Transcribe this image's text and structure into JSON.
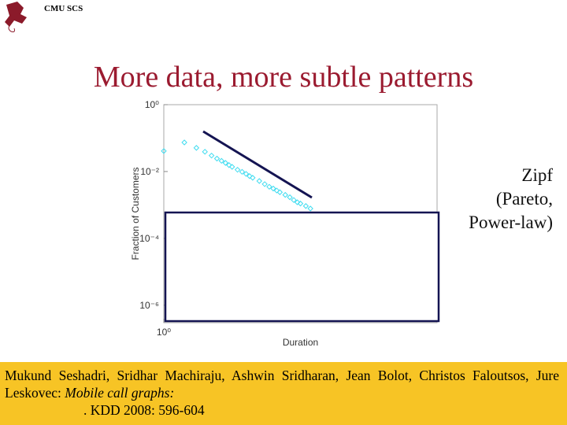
{
  "header": {
    "org": "CMU SCS"
  },
  "title": "More data, more subtle patterns",
  "side_note": {
    "lines": [
      "Zipf",
      "(Pareto,",
      "Power-law)"
    ]
  },
  "footer": {
    "authors": "Mukund Seshadri, Sridhar Machiraju, Ashwin Sridharan, Jean Bolot, Christos Faloutsos, Jure Leskovec:",
    "paper_title": "Mobile call graphs:",
    "venue": ". KDD 2008: 596-604"
  },
  "chart_data": {
    "type": "scatter",
    "xlabel": "Duration",
    "ylabel": "Fraction of Customers",
    "xscale": "log",
    "yscale": "log",
    "color": "#3fdcf0",
    "xlim": [
      1,
      10000
    ],
    "ylim": [
      3e-07,
      1
    ],
    "xticks": [
      {
        "value": 1,
        "label": "10⁰"
      }
    ],
    "yticks": [
      {
        "value": 1,
        "label": "10⁰"
      },
      {
        "value": 0.01,
        "label": "10⁻²"
      },
      {
        "value": 0.0001,
        "label": "10⁻⁴"
      },
      {
        "value": 1e-06,
        "label": "10⁻⁶"
      }
    ],
    "x": [
      1,
      2,
      3,
      4,
      5,
      6,
      7,
      8,
      9,
      10,
      12,
      14,
      16,
      18,
      20,
      25,
      30,
      35,
      40,
      45,
      50,
      60,
      70,
      80,
      90,
      100,
      120,
      140
    ],
    "values": [
      0.041,
      0.074,
      0.051,
      0.039,
      0.03,
      0.0244,
      0.0209,
      0.0181,
      0.0156,
      0.0138,
      0.0113,
      0.0098,
      0.0085,
      0.0073,
      0.0065,
      0.0052,
      0.0042,
      0.0035,
      0.0031,
      0.0027,
      0.0024,
      0.002,
      0.0017,
      0.0014,
      0.0012,
      0.0011,
      0.00093,
      0.00078
    ]
  }
}
